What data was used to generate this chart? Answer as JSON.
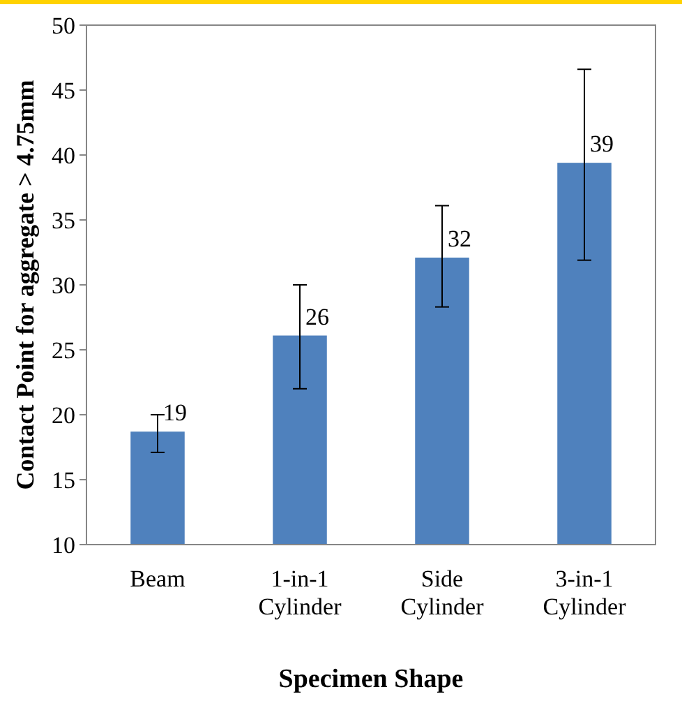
{
  "chart_data": {
    "type": "bar",
    "xlabel": "Specimen Shape",
    "ylabel": "Contact Point for aggregate > 4.75mm",
    "categories": [
      "Beam",
      "1-in-1 Cylinder",
      "Side Cylinder",
      "3-in-1 Cylinder"
    ],
    "values": [
      18.7,
      26.1,
      32.1,
      39.4
    ],
    "value_labels": [
      "19",
      "26",
      "32",
      "39"
    ],
    "errors": [
      [
        17.1,
        20
      ],
      [
        22,
        30
      ],
      [
        28.3,
        36.1
      ],
      [
        31.9,
        46.6
      ]
    ],
    "color": "#4f81bd",
    "ylim": [
      10,
      50
    ],
    "yticks": [
      10,
      15,
      20,
      25,
      30,
      35,
      40,
      45,
      50
    ],
    "grid": false
  }
}
